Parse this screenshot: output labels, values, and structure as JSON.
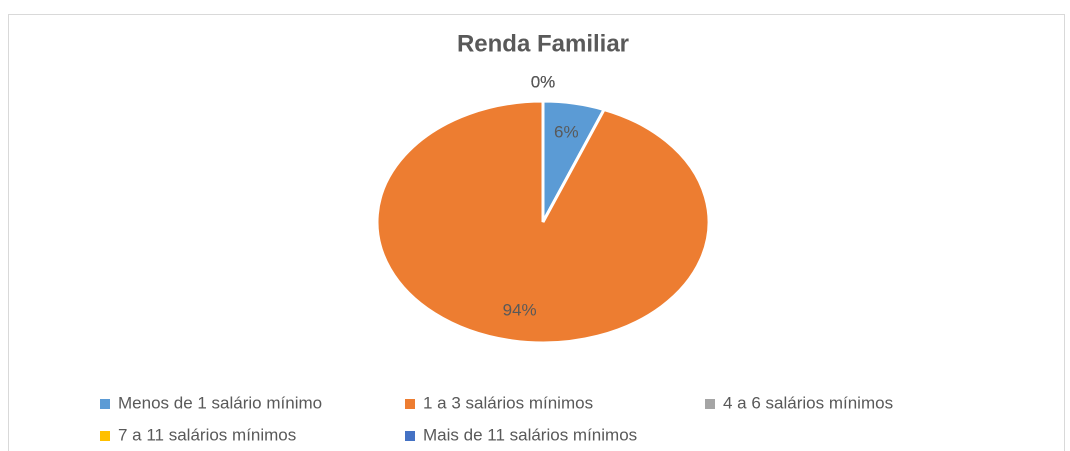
{
  "chart_data": {
    "type": "pie",
    "title": "Renda Familiar",
    "categories": [
      "Menos de 1 salário mínimo",
      "1 a 3 salários mínimos",
      "4 a 6 salários mínimos",
      "7 a 11 salários mínimos",
      "Mais de 11 salários mínimos"
    ],
    "values": [
      6,
      94,
      0,
      0,
      0
    ],
    "value_labels": [
      "6%",
      "94%",
      "0%",
      "0%",
      "0%"
    ],
    "colors": [
      "#5b9bd5",
      "#ed7d31",
      "#a5a5a5",
      "#ffc000",
      "#4472c4"
    ],
    "legend": "bottom"
  }
}
